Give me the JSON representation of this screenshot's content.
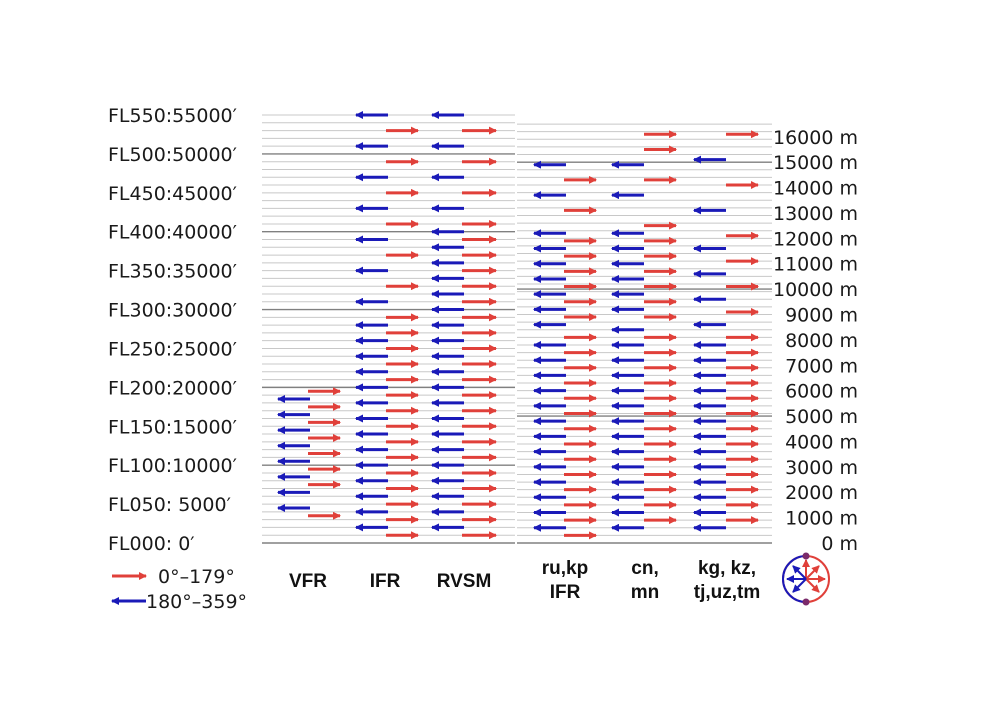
{
  "colors": {
    "east": "#e0403a",
    "west": "#1a1ab8",
    "fine_line": "#c8c8c8",
    "major_line": "#808080",
    "text": "#1a1a1a"
  },
  "feet_scale": {
    "unit": "ft",
    "labels": [
      {
        "text": "FL550:55000′",
        "ft": 55000
      },
      {
        "text": "FL500:50000′",
        "ft": 50000
      },
      {
        "text": "FL450:45000′",
        "ft": 45000
      },
      {
        "text": "FL400:40000′",
        "ft": 40000
      },
      {
        "text": "FL350:35000′",
        "ft": 35000
      },
      {
        "text": "FL300:30000′",
        "ft": 30000
      },
      {
        "text": "FL250:25000′",
        "ft": 25000
      },
      {
        "text": "FL200:20000′",
        "ft": 20000
      },
      {
        "text": "FL150:15000′",
        "ft": 15000
      },
      {
        "text": "FL100:10000′",
        "ft": 10000
      },
      {
        "text": "FL050:  5000′",
        "ft": 5000
      },
      {
        "text": "FL000:      0′",
        "ft": 0
      }
    ]
  },
  "metre_scale": {
    "unit": "m",
    "labels": [
      {
        "text": "16000 m",
        "m": 16000
      },
      {
        "text": "15000 m",
        "m": 15000
      },
      {
        "text": "14000 m",
        "m": 14000
      },
      {
        "text": "13000 m",
        "m": 13000
      },
      {
        "text": "12000 m",
        "m": 12000
      },
      {
        "text": "11000 m",
        "m": 11000
      },
      {
        "text": "10000 m",
        "m": 10000
      },
      {
        "text": "9000 m",
        "m": 9000
      },
      {
        "text": "8000 m",
        "m": 8000
      },
      {
        "text": "7000 m",
        "m": 7000
      },
      {
        "text": "6000 m",
        "m": 6000
      },
      {
        "text": "5000 m",
        "m": 5000
      },
      {
        "text": "4000 m",
        "m": 4000
      },
      {
        "text": "3000 m",
        "m": 3000
      },
      {
        "text": "2000 m",
        "m": 2000
      },
      {
        "text": "1000 m",
        "m": 1000
      },
      {
        "text": "0 m",
        "m": 0
      }
    ]
  },
  "columns": {
    "vfr": {
      "label": "VFR",
      "east_ft": [
        3500,
        7500,
        9500,
        11500,
        13500,
        15500,
        17500,
        19500
      ],
      "west_ft": [
        4500,
        6500,
        8500,
        10500,
        12500,
        14500,
        16500,
        18500
      ]
    },
    "ifr": {
      "label": "IFR",
      "east_ft": [
        1000,
        3000,
        5000,
        7000,
        9000,
        11000,
        13000,
        15000,
        17000,
        19000,
        21000,
        23000,
        25000,
        27000,
        29000,
        33000,
        37000,
        41000,
        45000,
        49000,
        53000
      ],
      "west_ft": [
        2000,
        4000,
        6000,
        8000,
        10000,
        12000,
        14000,
        16000,
        18000,
        20000,
        22000,
        24000,
        26000,
        28000,
        31000,
        35000,
        39000,
        43000,
        47000,
        51000,
        55000
      ]
    },
    "rvsm": {
      "label": "RVSM",
      "east_ft": [
        1000,
        3000,
        5000,
        7000,
        9000,
        11000,
        13000,
        15000,
        17000,
        19000,
        21000,
        23000,
        25000,
        27000,
        29000,
        31000,
        33000,
        35000,
        37000,
        39000,
        41000,
        45000,
        49000,
        53000
      ],
      "west_ft": [
        2000,
        4000,
        6000,
        8000,
        10000,
        12000,
        14000,
        16000,
        18000,
        20000,
        22000,
        24000,
        26000,
        28000,
        30000,
        32000,
        34000,
        36000,
        38000,
        40000,
        43000,
        47000,
        51000,
        55000
      ]
    },
    "ru_kp": {
      "label_line1": "ru,kp",
      "label_line2": "IFR",
      "east_m": [
        300,
        900,
        1500,
        2100,
        2700,
        3300,
        3900,
        4500,
        5100,
        5700,
        6300,
        6900,
        7500,
        8100,
        8900,
        9500,
        10100,
        10700,
        11300,
        11900,
        13100,
        14300
      ],
      "west_m": [
        600,
        1200,
        1800,
        2400,
        3000,
        3600,
        4200,
        4800,
        5400,
        6000,
        6600,
        7200,
        7800,
        8600,
        9200,
        9800,
        10400,
        11000,
        11600,
        12200,
        13700,
        14900
      ]
    },
    "cn_mn": {
      "label_line1": "cn,",
      "label_line2": "mn",
      "east_m": [
        900,
        1500,
        2100,
        2700,
        3300,
        3900,
        4500,
        5100,
        5700,
        6300,
        6900,
        7500,
        8100,
        8900,
        9500,
        10100,
        10700,
        11300,
        11900,
        12500,
        14300,
        15500,
        16100
      ],
      "west_m": [
        600,
        1200,
        1800,
        2400,
        3000,
        3600,
        4200,
        4800,
        5400,
        6000,
        6600,
        7200,
        7800,
        8400,
        9200,
        9800,
        10400,
        11000,
        11600,
        12200,
        13700,
        14900
      ]
    },
    "central_asia": {
      "label_line1": "kg, kz,",
      "label_line2": "tj,uz,tm",
      "east_m": [
        900,
        1500,
        2100,
        2700,
        3300,
        3900,
        4500,
        5100,
        5700,
        6300,
        6900,
        7500,
        8100,
        9100,
        10100,
        11100,
        12100,
        14100,
        16100
      ],
      "west_m": [
        600,
        1200,
        1800,
        2400,
        3000,
        3600,
        4200,
        4800,
        5400,
        6000,
        6600,
        7200,
        7800,
        8600,
        9600,
        10600,
        11600,
        13100,
        15100
      ]
    }
  },
  "legend": {
    "east_text": "0°–179°",
    "west_text": "180°–359°"
  }
}
